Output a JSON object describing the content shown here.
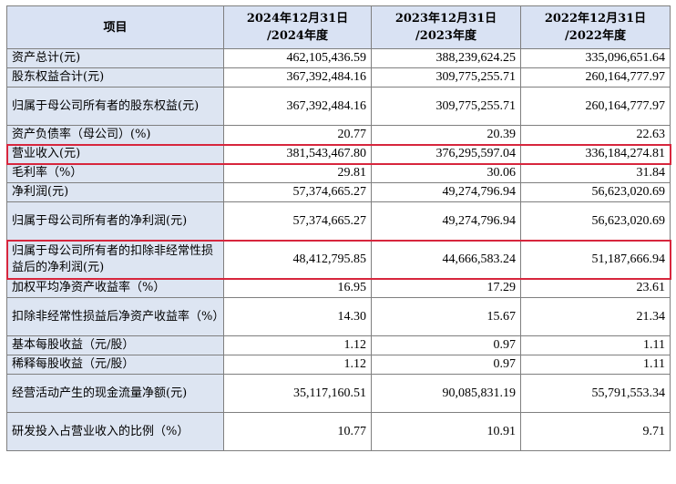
{
  "table": {
    "headers": [
      "项目",
      "2024年12月31日 /2024年度",
      "2023年12月31日 /2023年度",
      "2022年12月31日 /2022年度"
    ],
    "header_lines": [
      [
        "项目"
      ],
      [
        "2024年12月31日",
        "/2024年度"
      ],
      [
        "2023年12月31日",
        "/2023年度"
      ],
      [
        "2022年12月31日",
        "/2022年度"
      ]
    ],
    "rows": [
      {
        "label": "资产总计(元)",
        "values": [
          "462,105,436.59",
          "388,239,624.25",
          "335,096,651.64"
        ],
        "tall": false
      },
      {
        "label": "股东权益合计(元)",
        "values": [
          "367,392,484.16",
          "309,775,255.71",
          "260,164,777.97"
        ],
        "tall": false
      },
      {
        "label": "归属于母公司所有者的股东权益(元)",
        "values": [
          "367,392,484.16",
          "309,775,255.71",
          "260,164,777.97"
        ],
        "tall": true
      },
      {
        "label": "资产负债率（母公司）(%)",
        "values": [
          "20.77",
          "20.39",
          "22.63"
        ],
        "tall": false
      },
      {
        "label": "营业收入(元)",
        "values": [
          "381,543,467.80",
          "376,295,597.04",
          "336,184,274.81"
        ],
        "tall": false,
        "highlighted": true
      },
      {
        "label": "毛利率（%）",
        "values": [
          "29.81",
          "30.06",
          "31.84"
        ],
        "tall": false
      },
      {
        "label": "净利润(元)",
        "values": [
          "57,374,665.27",
          "49,274,796.94",
          "56,623,020.69"
        ],
        "tall": false
      },
      {
        "label": "归属于母公司所有者的净利润(元)",
        "values": [
          "57,374,665.27",
          "49,274,796.94",
          "56,623,020.69"
        ],
        "tall": true
      },
      {
        "label": "归属于母公司所有者的扣除非经常性损益后的净利润(元)",
        "values": [
          "48,412,795.85",
          "44,666,583.24",
          "51,187,666.94"
        ],
        "tall": true,
        "highlighted": true
      },
      {
        "label": "加权平均净资产收益率（%）",
        "values": [
          "16.95",
          "17.29",
          "23.61"
        ],
        "tall": false
      },
      {
        "label": "扣除非经常性损益后净资产收益率（%）",
        "values": [
          "14.30",
          "15.67",
          "21.34"
        ],
        "tall": true
      },
      {
        "label": "基本每股收益（元/股）",
        "values": [
          "1.12",
          "0.97",
          "1.11"
        ],
        "tall": false
      },
      {
        "label": "稀释每股收益（元/股）",
        "values": [
          "1.12",
          "0.97",
          "1.11"
        ],
        "tall": false
      },
      {
        "label": "经营活动产生的现金流量净额(元)",
        "values": [
          "35,117,160.51",
          "90,085,831.19",
          "55,791,553.34"
        ],
        "tall": true
      },
      {
        "label": "研发投入占营业收入的比例（%）",
        "values": [
          "10.77",
          "10.91",
          "9.71"
        ],
        "tall": true
      }
    ]
  },
  "colors": {
    "header_bg": "#d9e2f3",
    "label_bg": "#dde5f2",
    "highlight_border": "#d7263d",
    "grid": "#7f7f7f"
  }
}
